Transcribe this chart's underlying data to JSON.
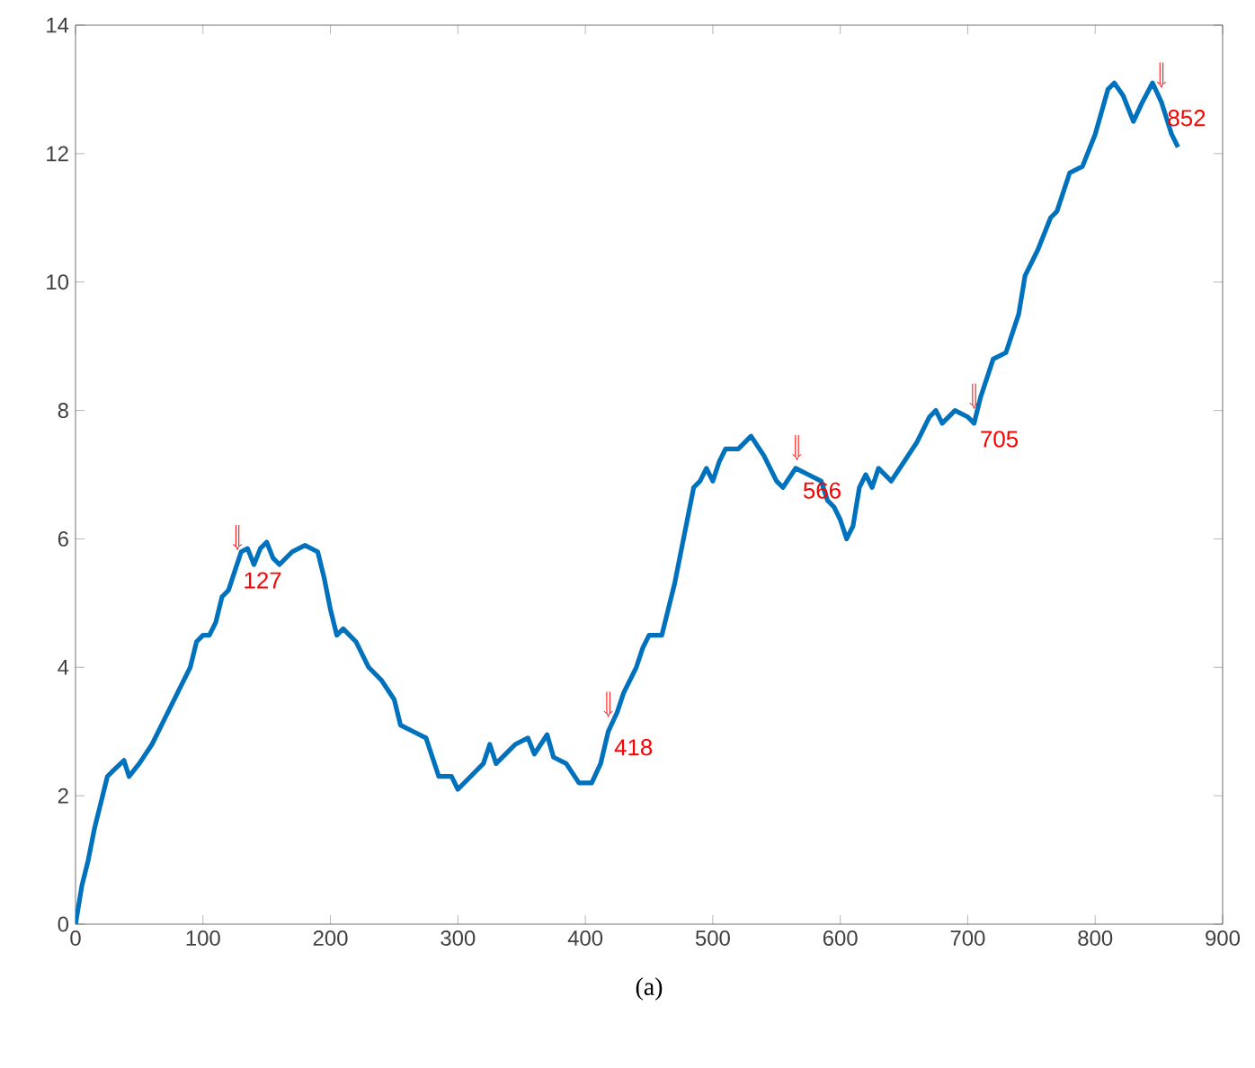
{
  "chart_data": {
    "type": "line",
    "x": [
      0,
      5,
      10,
      15,
      20,
      25,
      30,
      38,
      42,
      50,
      60,
      70,
      80,
      90,
      95,
      100,
      105,
      110,
      115,
      120,
      125,
      130,
      135,
      140,
      145,
      150,
      155,
      160,
      170,
      180,
      190,
      195,
      200,
      205,
      210,
      215,
      220,
      230,
      240,
      250,
      255,
      265,
      275,
      285,
      295,
      300,
      310,
      320,
      325,
      330,
      340,
      345,
      355,
      360,
      370,
      375,
      385,
      395,
      405,
      412,
      418,
      425,
      430,
      440,
      445,
      450,
      460,
      470,
      480,
      485,
      490,
      495,
      500,
      505,
      510,
      520,
      530,
      540,
      550,
      555,
      565,
      575,
      585,
      590,
      595,
      600,
      605,
      610,
      615,
      620,
      625,
      630,
      640,
      650,
      660,
      670,
      675,
      680,
      690,
      700,
      705,
      710,
      720,
      730,
      740,
      745,
      755,
      765,
      770,
      780,
      790,
      800,
      810,
      815,
      822,
      830,
      837,
      845,
      852,
      860,
      865
    ],
    "series": [
      {
        "color": "#0072bd",
        "values": [
          0,
          0.6,
          1.0,
          1.5,
          1.9,
          2.3,
          2.4,
          2.55,
          2.3,
          2.5,
          2.8,
          3.2,
          3.6,
          4.0,
          4.4,
          4.5,
          4.5,
          4.7,
          5.1,
          5.2,
          5.5,
          5.8,
          5.85,
          5.6,
          5.85,
          5.95,
          5.7,
          5.6,
          5.8,
          5.9,
          5.8,
          5.4,
          4.9,
          4.5,
          4.6,
          4.5,
          4.4,
          4.0,
          3.8,
          3.5,
          3.1,
          3.0,
          2.9,
          2.3,
          2.3,
          2.1,
          2.3,
          2.5,
          2.8,
          2.5,
          2.7,
          2.8,
          2.9,
          2.65,
          2.95,
          2.6,
          2.5,
          2.2,
          2.2,
          2.5,
          3.0,
          3.3,
          3.6,
          4.0,
          4.3,
          4.5,
          4.5,
          5.3,
          6.3,
          6.8,
          6.9,
          7.1,
          6.9,
          7.2,
          7.4,
          7.4,
          7.6,
          7.3,
          6.9,
          6.8,
          7.1,
          7.0,
          6.9,
          6.6,
          6.5,
          6.3,
          6.0,
          6.2,
          6.8,
          7.0,
          6.8,
          7.1,
          6.9,
          7.2,
          7.5,
          7.9,
          8.0,
          7.8,
          8.0,
          7.9,
          7.8,
          8.2,
          8.8,
          8.9,
          9.5,
          10.1,
          10.5,
          11.0,
          11.1,
          11.7,
          11.8,
          12.3,
          13.0,
          13.1,
          12.9,
          12.5,
          12.8,
          13.1,
          12.8,
          12.3,
          12.1
        ]
      }
    ],
    "xlim": [
      0,
      900
    ],
    "xticks": [
      0,
      100,
      200,
      300,
      400,
      500,
      600,
      700,
      800,
      900
    ],
    "ylim": [
      0,
      14
    ],
    "yticks": [
      0,
      2,
      4,
      6,
      8,
      10,
      12,
      14
    ],
    "grid": false,
    "marker": "none",
    "line_style": "solid",
    "annotations": [
      {
        "text": "127",
        "x": 127,
        "y": 5.6
      },
      {
        "text": "418",
        "x": 418,
        "y": 3.0
      },
      {
        "text": "566",
        "x": 566,
        "y": 7.0
      },
      {
        "text": "705",
        "x": 705,
        "y": 7.8
      },
      {
        "text": "852",
        "x": 852,
        "y": 12.8
      },
      "(a)"
    ]
  }
}
